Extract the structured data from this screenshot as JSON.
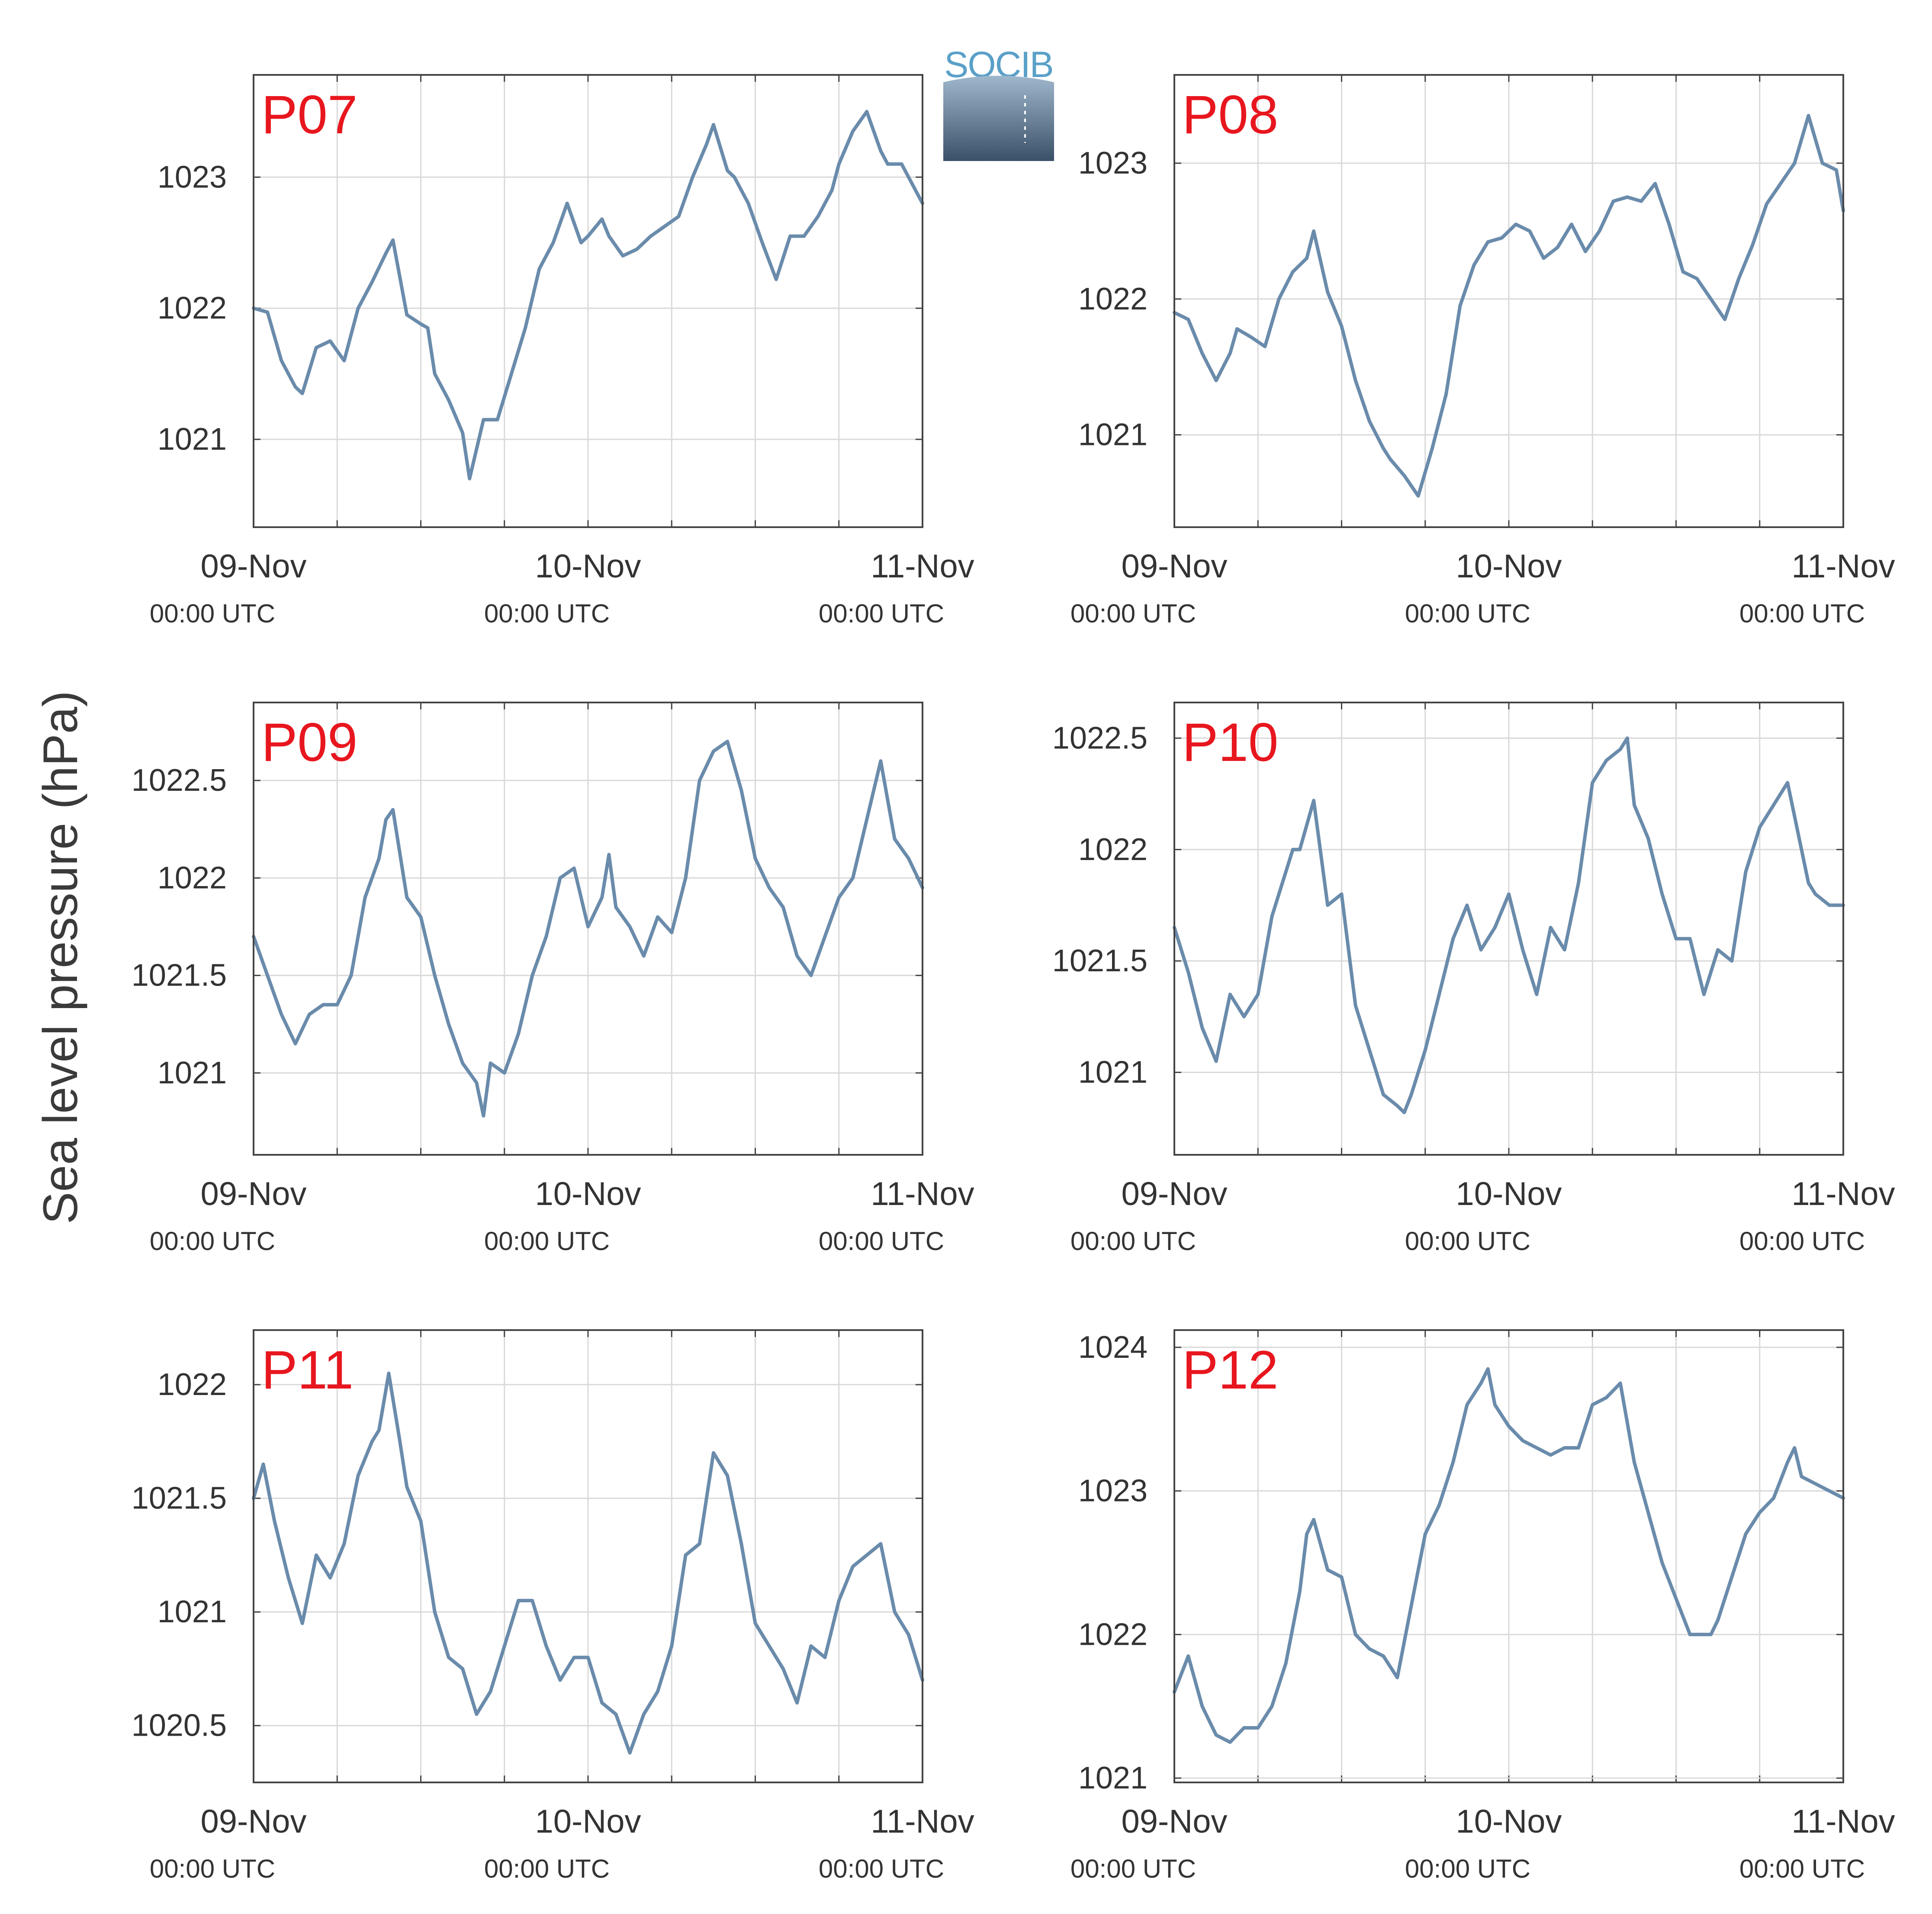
{
  "ylabel": "Sea level pressure (hPa)",
  "logo": {
    "text": "SOCIB",
    "colors": {
      "text": "#5aa0c8",
      "gradient_top": "#9fb7cc",
      "gradient_bottom": "#3a5068"
    }
  },
  "colors": {
    "line": "#6a8bab",
    "station_label": "#e8161e",
    "grid": "#d9d9d9",
    "axis": "#444444",
    "tick_text": "#333333"
  },
  "x_ticks": [
    {
      "t": 0,
      "day": "09-Nov",
      "time": "00:00 UTC"
    },
    {
      "t": 24,
      "day": "10-Nov",
      "time": "00:00 UTC"
    },
    {
      "t": 48,
      "day": "11-Nov",
      "time": "00:00 UTC"
    }
  ],
  "chart_data": [
    {
      "type": "line",
      "name": "P07",
      "xlim": [
        0,
        48
      ],
      "ylim": [
        1020.33,
        1023.78
      ],
      "yticks": [
        {
          "v": 1021,
          "label": "1021"
        },
        {
          "v": 1022,
          "label": "1022"
        },
        {
          "v": 1023,
          "label": "1023"
        }
      ],
      "x": [
        0,
        1,
        2,
        3,
        3.5,
        4.5,
        5.5,
        6.5,
        7.5,
        8.5,
        9.5,
        10,
        11,
        12,
        12.5,
        13,
        14,
        15,
        15.5,
        16.5,
        17.5,
        18.5,
        19.5,
        20.5,
        21.5,
        22.5,
        23.5,
        24,
        25,
        25.5,
        26.5,
        27.5,
        28.5,
        30.5,
        31.5,
        32.5,
        33,
        34,
        34.5,
        35.5,
        36.5,
        37.5,
        38.5,
        39.5,
        40.5,
        41.5,
        42,
        43,
        44,
        45,
        45.5,
        46.5,
        47.5,
        48
      ],
      "values": [
        1022.0,
        1021.97,
        1021.6,
        1021.4,
        1021.35,
        1021.7,
        1021.75,
        1021.6,
        1022.0,
        1022.2,
        1022.42,
        1022.52,
        1021.95,
        1021.88,
        1021.85,
        1021.5,
        1021.3,
        1021.05,
        1020.7,
        1021.15,
        1021.15,
        1021.5,
        1021.85,
        1022.3,
        1022.5,
        1022.8,
        1022.5,
        1022.55,
        1022.68,
        1022.55,
        1022.4,
        1022.45,
        1022.55,
        1022.7,
        1023.0,
        1023.25,
        1023.4,
        1023.05,
        1023.0,
        1022.8,
        1022.5,
        1022.22,
        1022.55,
        1022.55,
        1022.7,
        1022.9,
        1023.1,
        1023.35,
        1023.5,
        1023.2,
        1023.1,
        1023.1,
        1022.9,
        1022.8
      ]
    },
    {
      "type": "line",
      "name": "P08",
      "xlim": [
        0,
        48
      ],
      "ylim": [
        1020.32,
        1023.65
      ],
      "yticks": [
        {
          "v": 1021,
          "label": "1021"
        },
        {
          "v": 1022,
          "label": "1022"
        },
        {
          "v": 1023,
          "label": "1023"
        }
      ],
      "x": [
        0,
        1,
        2,
        3,
        4,
        4.5,
        5.5,
        6.5,
        7.5,
        8.5,
        9.5,
        10,
        11,
        12,
        13,
        14,
        15,
        15.5,
        16.5,
        17.5,
        18.5,
        19.5,
        20.5,
        21.5,
        22.5,
        23.5,
        24.5,
        25.5,
        26.5,
        27.5,
        28.5,
        29.5,
        30.5,
        31.5,
        32.5,
        33.5,
        34.5,
        35.5,
        36.5,
        37.5,
        38.5,
        39.5,
        40.5,
        41.5,
        42.5,
        43.5,
        44.5,
        45.5,
        46.5,
        47.5,
        48
      ],
      "values": [
        1021.9,
        1021.85,
        1021.6,
        1021.4,
        1021.6,
        1021.78,
        1021.72,
        1021.65,
        1022.0,
        1022.2,
        1022.3,
        1022.5,
        1022.05,
        1021.8,
        1021.4,
        1021.1,
        1020.9,
        1020.82,
        1020.7,
        1020.55,
        1020.9,
        1021.3,
        1021.95,
        1022.25,
        1022.42,
        1022.45,
        1022.55,
        1022.5,
        1022.3,
        1022.38,
        1022.55,
        1022.35,
        1022.5,
        1022.72,
        1022.75,
        1022.72,
        1022.85,
        1022.55,
        1022.2,
        1022.15,
        1022.0,
        1021.85,
        1022.15,
        1022.4,
        1022.7,
        1022.85,
        1023.0,
        1023.35,
        1023.0,
        1022.95,
        1022.65
      ]
    },
    {
      "type": "line",
      "name": "P09",
      "xlim": [
        0,
        48
      ],
      "ylim": [
        1020.58,
        1022.9
      ],
      "yticks": [
        {
          "v": 1021,
          "label": "1021"
        },
        {
          "v": 1021.5,
          "label": "1021.5"
        },
        {
          "v": 1022,
          "label": "1022"
        },
        {
          "v": 1022.5,
          "label": "1022.5"
        }
      ],
      "x": [
        0,
        1,
        2,
        3,
        4,
        5,
        6,
        7,
        8,
        9,
        9.5,
        10,
        11,
        12,
        13,
        14,
        15,
        16,
        16.5,
        17,
        18,
        19,
        20,
        21,
        22,
        23,
        24,
        25,
        25.5,
        26,
        27,
        28,
        29,
        30,
        31,
        32,
        33,
        34,
        35,
        36,
        37,
        38,
        39,
        40,
        41,
        42,
        43,
        44,
        45,
        46,
        47,
        48
      ],
      "values": [
        1021.7,
        1021.5,
        1021.3,
        1021.15,
        1021.3,
        1021.35,
        1021.35,
        1021.5,
        1021.9,
        1022.1,
        1022.3,
        1022.35,
        1021.9,
        1021.8,
        1021.5,
        1021.25,
        1021.05,
        1020.95,
        1020.78,
        1021.05,
        1021.0,
        1021.2,
        1021.5,
        1021.7,
        1022.0,
        1022.05,
        1021.75,
        1021.9,
        1022.12,
        1021.85,
        1021.75,
        1021.6,
        1021.8,
        1021.72,
        1022.0,
        1022.5,
        1022.65,
        1022.7,
        1022.45,
        1022.1,
        1021.95,
        1021.85,
        1021.6,
        1021.5,
        1021.7,
        1021.9,
        1022.0,
        1022.3,
        1022.6,
        1022.2,
        1022.1,
        1021.95
      ]
    },
    {
      "type": "line",
      "name": "P10",
      "xlim": [
        0,
        48
      ],
      "ylim": [
        1020.63,
        1022.66
      ],
      "yticks": [
        {
          "v": 1021,
          "label": "1021"
        },
        {
          "v": 1021.5,
          "label": "1021.5"
        },
        {
          "v": 1022,
          "label": "1022"
        },
        {
          "v": 1022.5,
          "label": "1022.5"
        }
      ],
      "x": [
        0,
        1,
        2,
        3,
        4,
        5,
        6,
        7,
        8,
        8.5,
        9,
        10,
        11,
        12,
        13,
        14,
        14.5,
        15,
        16,
        16.5,
        17,
        18,
        19,
        20,
        21,
        22,
        23,
        24,
        25,
        26,
        27,
        28,
        29,
        30,
        31,
        32,
        32.5,
        33,
        34,
        35,
        36,
        37,
        38,
        39,
        40,
        41,
        42,
        43,
        44,
        45,
        45.5,
        46,
        47,
        48
      ],
      "values": [
        1021.65,
        1021.45,
        1021.2,
        1021.05,
        1021.35,
        1021.25,
        1021.35,
        1021.7,
        1021.9,
        1022.0,
        1022.0,
        1022.22,
        1021.75,
        1021.8,
        1021.3,
        1021.1,
        1021.0,
        1020.9,
        1020.85,
        1020.82,
        1020.9,
        1021.1,
        1021.35,
        1021.6,
        1021.75,
        1021.55,
        1021.65,
        1021.8,
        1021.55,
        1021.35,
        1021.65,
        1021.55,
        1021.85,
        1022.3,
        1022.4,
        1022.45,
        1022.5,
        1022.2,
        1022.05,
        1021.8,
        1021.6,
        1021.6,
        1021.35,
        1021.55,
        1021.5,
        1021.9,
        1022.1,
        1022.2,
        1022.3,
        1022.0,
        1021.85,
        1021.8,
        1021.75,
        1021.75
      ]
    },
    {
      "type": "line",
      "name": "P11",
      "xlim": [
        0,
        48
      ],
      "ylim": [
        1020.25,
        1022.24
      ],
      "yticks": [
        {
          "v": 1020.5,
          "label": "1020.5"
        },
        {
          "v": 1021,
          "label": "1021"
        },
        {
          "v": 1021.5,
          "label": "1021.5"
        },
        {
          "v": 1022,
          "label": "1022"
        }
      ],
      "x": [
        0,
        0.7,
        1.5,
        2.5,
        3.5,
        4.5,
        5.5,
        6.5,
        7.5,
        8.5,
        9,
        9.7,
        10.5,
        11,
        12,
        13,
        14,
        15,
        16,
        17,
        18,
        19,
        20,
        21,
        22,
        23,
        24,
        25,
        26,
        27,
        28,
        29,
        30,
        31,
        32,
        33,
        34,
        35,
        36,
        37,
        38,
        39,
        40,
        41,
        42,
        43,
        44,
        45,
        46,
        47,
        48
      ],
      "values": [
        1021.5,
        1021.65,
        1021.4,
        1021.15,
        1020.95,
        1021.25,
        1021.15,
        1021.3,
        1021.6,
        1021.75,
        1021.8,
        1022.05,
        1021.75,
        1021.55,
        1021.4,
        1021.0,
        1020.8,
        1020.75,
        1020.55,
        1020.65,
        1020.85,
        1021.05,
        1021.05,
        1020.85,
        1020.7,
        1020.8,
        1020.8,
        1020.6,
        1020.55,
        1020.38,
        1020.55,
        1020.65,
        1020.85,
        1021.25,
        1021.3,
        1021.7,
        1021.6,
        1021.3,
        1020.95,
        1020.85,
        1020.75,
        1020.6,
        1020.85,
        1020.8,
        1021.05,
        1021.2,
        1021.25,
        1021.3,
        1021.0,
        1020.9,
        1020.7
      ]
    },
    {
      "type": "line",
      "name": "P12",
      "xlim": [
        0,
        48
      ],
      "ylim": [
        1020.97,
        1024.12
      ],
      "yticks": [
        {
          "v": 1021,
          "label": "1021"
        },
        {
          "v": 1022,
          "label": "1022"
        },
        {
          "v": 1023,
          "label": "1023"
        },
        {
          "v": 1024,
          "label": "1024"
        }
      ],
      "x": [
        0,
        1,
        2,
        3,
        4,
        5,
        6,
        7,
        8,
        9,
        9.5,
        10,
        11,
        12,
        13,
        14,
        15,
        16,
        17,
        18,
        19,
        20,
        21,
        22,
        22.5,
        23,
        24,
        25,
        26,
        27,
        28,
        29,
        30,
        31,
        32,
        33,
        34,
        35,
        36,
        37,
        38,
        38.5,
        39,
        40,
        41,
        42,
        43,
        44,
        44.5,
        45,
        46,
        47,
        48
      ],
      "values": [
        1021.6,
        1021.85,
        1021.5,
        1021.3,
        1021.25,
        1021.35,
        1021.35,
        1021.5,
        1021.8,
        1022.3,
        1022.7,
        1022.8,
        1022.45,
        1022.4,
        1022.0,
        1021.9,
        1021.85,
        1021.7,
        1022.2,
        1022.7,
        1022.9,
        1023.2,
        1023.6,
        1023.75,
        1023.85,
        1023.6,
        1023.45,
        1023.35,
        1023.3,
        1023.25,
        1023.3,
        1023.3,
        1023.6,
        1023.65,
        1023.75,
        1023.2,
        1022.85,
        1022.5,
        1022.25,
        1022.0,
        1022.0,
        1022.0,
        1022.1,
        1022.4,
        1022.7,
        1022.85,
        1022.95,
        1023.2,
        1023.3,
        1023.1,
        1023.05,
        1023.0,
        1022.95
      ]
    }
  ]
}
